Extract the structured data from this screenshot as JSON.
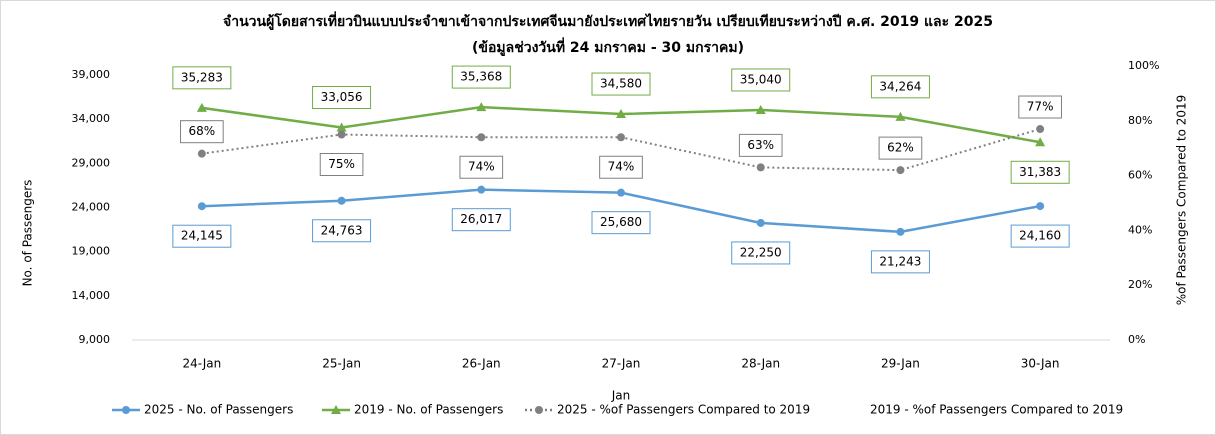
{
  "chart_data": {
    "type": "line",
    "title": "จำนวนผู้โดยสารเที่ยวบินแบบประจำขาเข้าจากประเทศจีนมายังประเทศไทยรายวัน เปรียบเทียบระหว่างปี ค.ศ. 2019 และ 2025",
    "subtitle": "(ข้อมูลช่วงวันที่ 24 มกราคม - 30 มกราคม)",
    "x_label": "Jan",
    "y_label": "No. of Passengers",
    "y2_label": "%of Passengers Compared to 2019",
    "categories": [
      "24-Jan",
      "25-Jan",
      "26-Jan",
      "27-Jan",
      "28-Jan",
      "29-Jan",
      "30-Jan"
    ],
    "ylim": [
      9000,
      39000
    ],
    "yticks": [
      {
        "value": 9000,
        "label": "9,000"
      },
      {
        "value": 14000,
        "label": "14,000"
      },
      {
        "value": 19000,
        "label": "19,000"
      },
      {
        "value": 24000,
        "label": "24,000"
      },
      {
        "value": 29000,
        "label": "29,000"
      },
      {
        "value": 34000,
        "label": "34,000"
      },
      {
        "value": 39000,
        "label": "39,000"
      }
    ],
    "y2lim": [
      0,
      100
    ],
    "y2ticks": [
      {
        "value": 0,
        "label": "0%"
      },
      {
        "value": 20,
        "label": "20%"
      },
      {
        "value": 40,
        "label": "40%"
      },
      {
        "value": 60,
        "label": "60%"
      },
      {
        "value": 80,
        "label": "80%"
      },
      {
        "value": 100,
        "label": "100%"
      }
    ],
    "grid": false,
    "legend": "bottom",
    "series": [
      {
        "name": "2025 - No. of Passengers",
        "color": "#5b9bd5",
        "marker": "circle",
        "dash": "solid",
        "values": [
          24145,
          24763,
          26017,
          25680,
          22250,
          21243,
          24160
        ],
        "value_labels": [
          "24,145",
          "24,763",
          "26,017",
          "25,680",
          "22,250",
          "21,243",
          "24,160"
        ]
      },
      {
        "name": "2019 - No. of Passengers",
        "color": "#70ad47",
        "marker": "triangle",
        "dash": "solid",
        "values": [
          35283,
          33056,
          35368,
          34580,
          35040,
          34264,
          31383
        ],
        "value_labels": [
          "35,283",
          "33,056",
          "35,368",
          "34,580",
          "35,040",
          "34,264",
          "31,383"
        ]
      },
      {
        "name": "2025 - %of Passengers Compared to 2019",
        "color": "#808080",
        "marker": "circle",
        "dash": "dotted",
        "axis": "y2",
        "values": [
          68,
          75,
          74,
          74,
          63,
          62,
          77
        ],
        "value_labels": [
          "68%",
          "75%",
          "74%",
          "74%",
          "63%",
          "62%",
          "77%"
        ]
      },
      {
        "name": "2019 - %of Passengers Compared to 2019",
        "color": "#ffffff",
        "marker": "none",
        "dash": "solid",
        "axis": "y2",
        "values": [
          null,
          null,
          null,
          null,
          null,
          null,
          null
        ]
      }
    ]
  }
}
